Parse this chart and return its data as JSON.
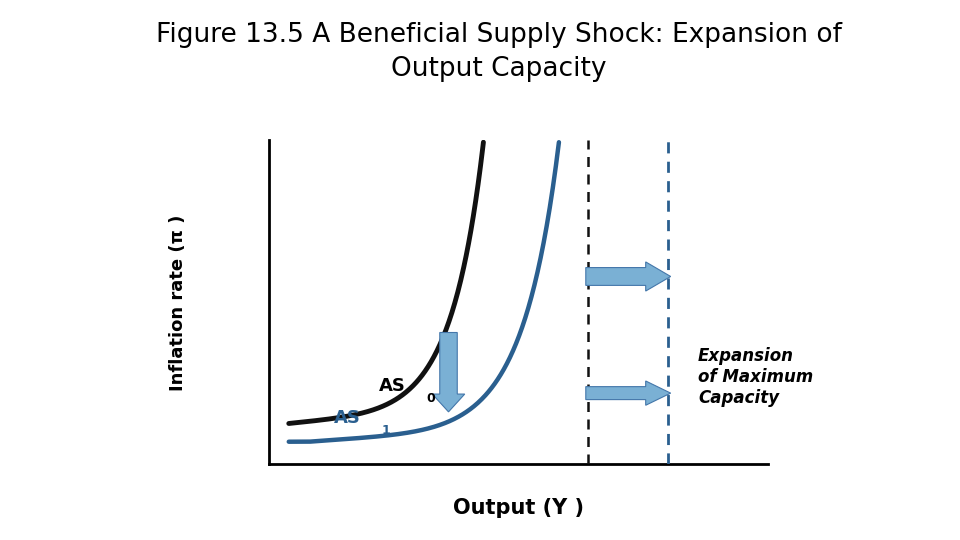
{
  "title_line1": "Figure 13.5 A Beneficial Supply Shock: Expansion of",
  "title_line2": "Output Capacity",
  "title_fontsize": 19,
  "xlabel": "Output (Y )",
  "xlabel_fontsize": 15,
  "xlabel_fontweight": "bold",
  "ylabel": "Inflation rate (π )",
  "ylabel_fontsize": 13,
  "ylabel_fontweight": "bold",
  "as0_color": "#111111",
  "as1_color": "#2a5f8f",
  "vline0_color": "#111111",
  "vline1_color": "#4477aa",
  "annotation_text": "Expansion\nof Maximum\nCapacity",
  "annotation_fontsize": 12,
  "annotation_fontstyle": "italic",
  "annotation_fontweight": "bold",
  "background_color": "#ffffff",
  "arrow_fill": "#7ab0d4",
  "arrow_edge": "#4477aa"
}
